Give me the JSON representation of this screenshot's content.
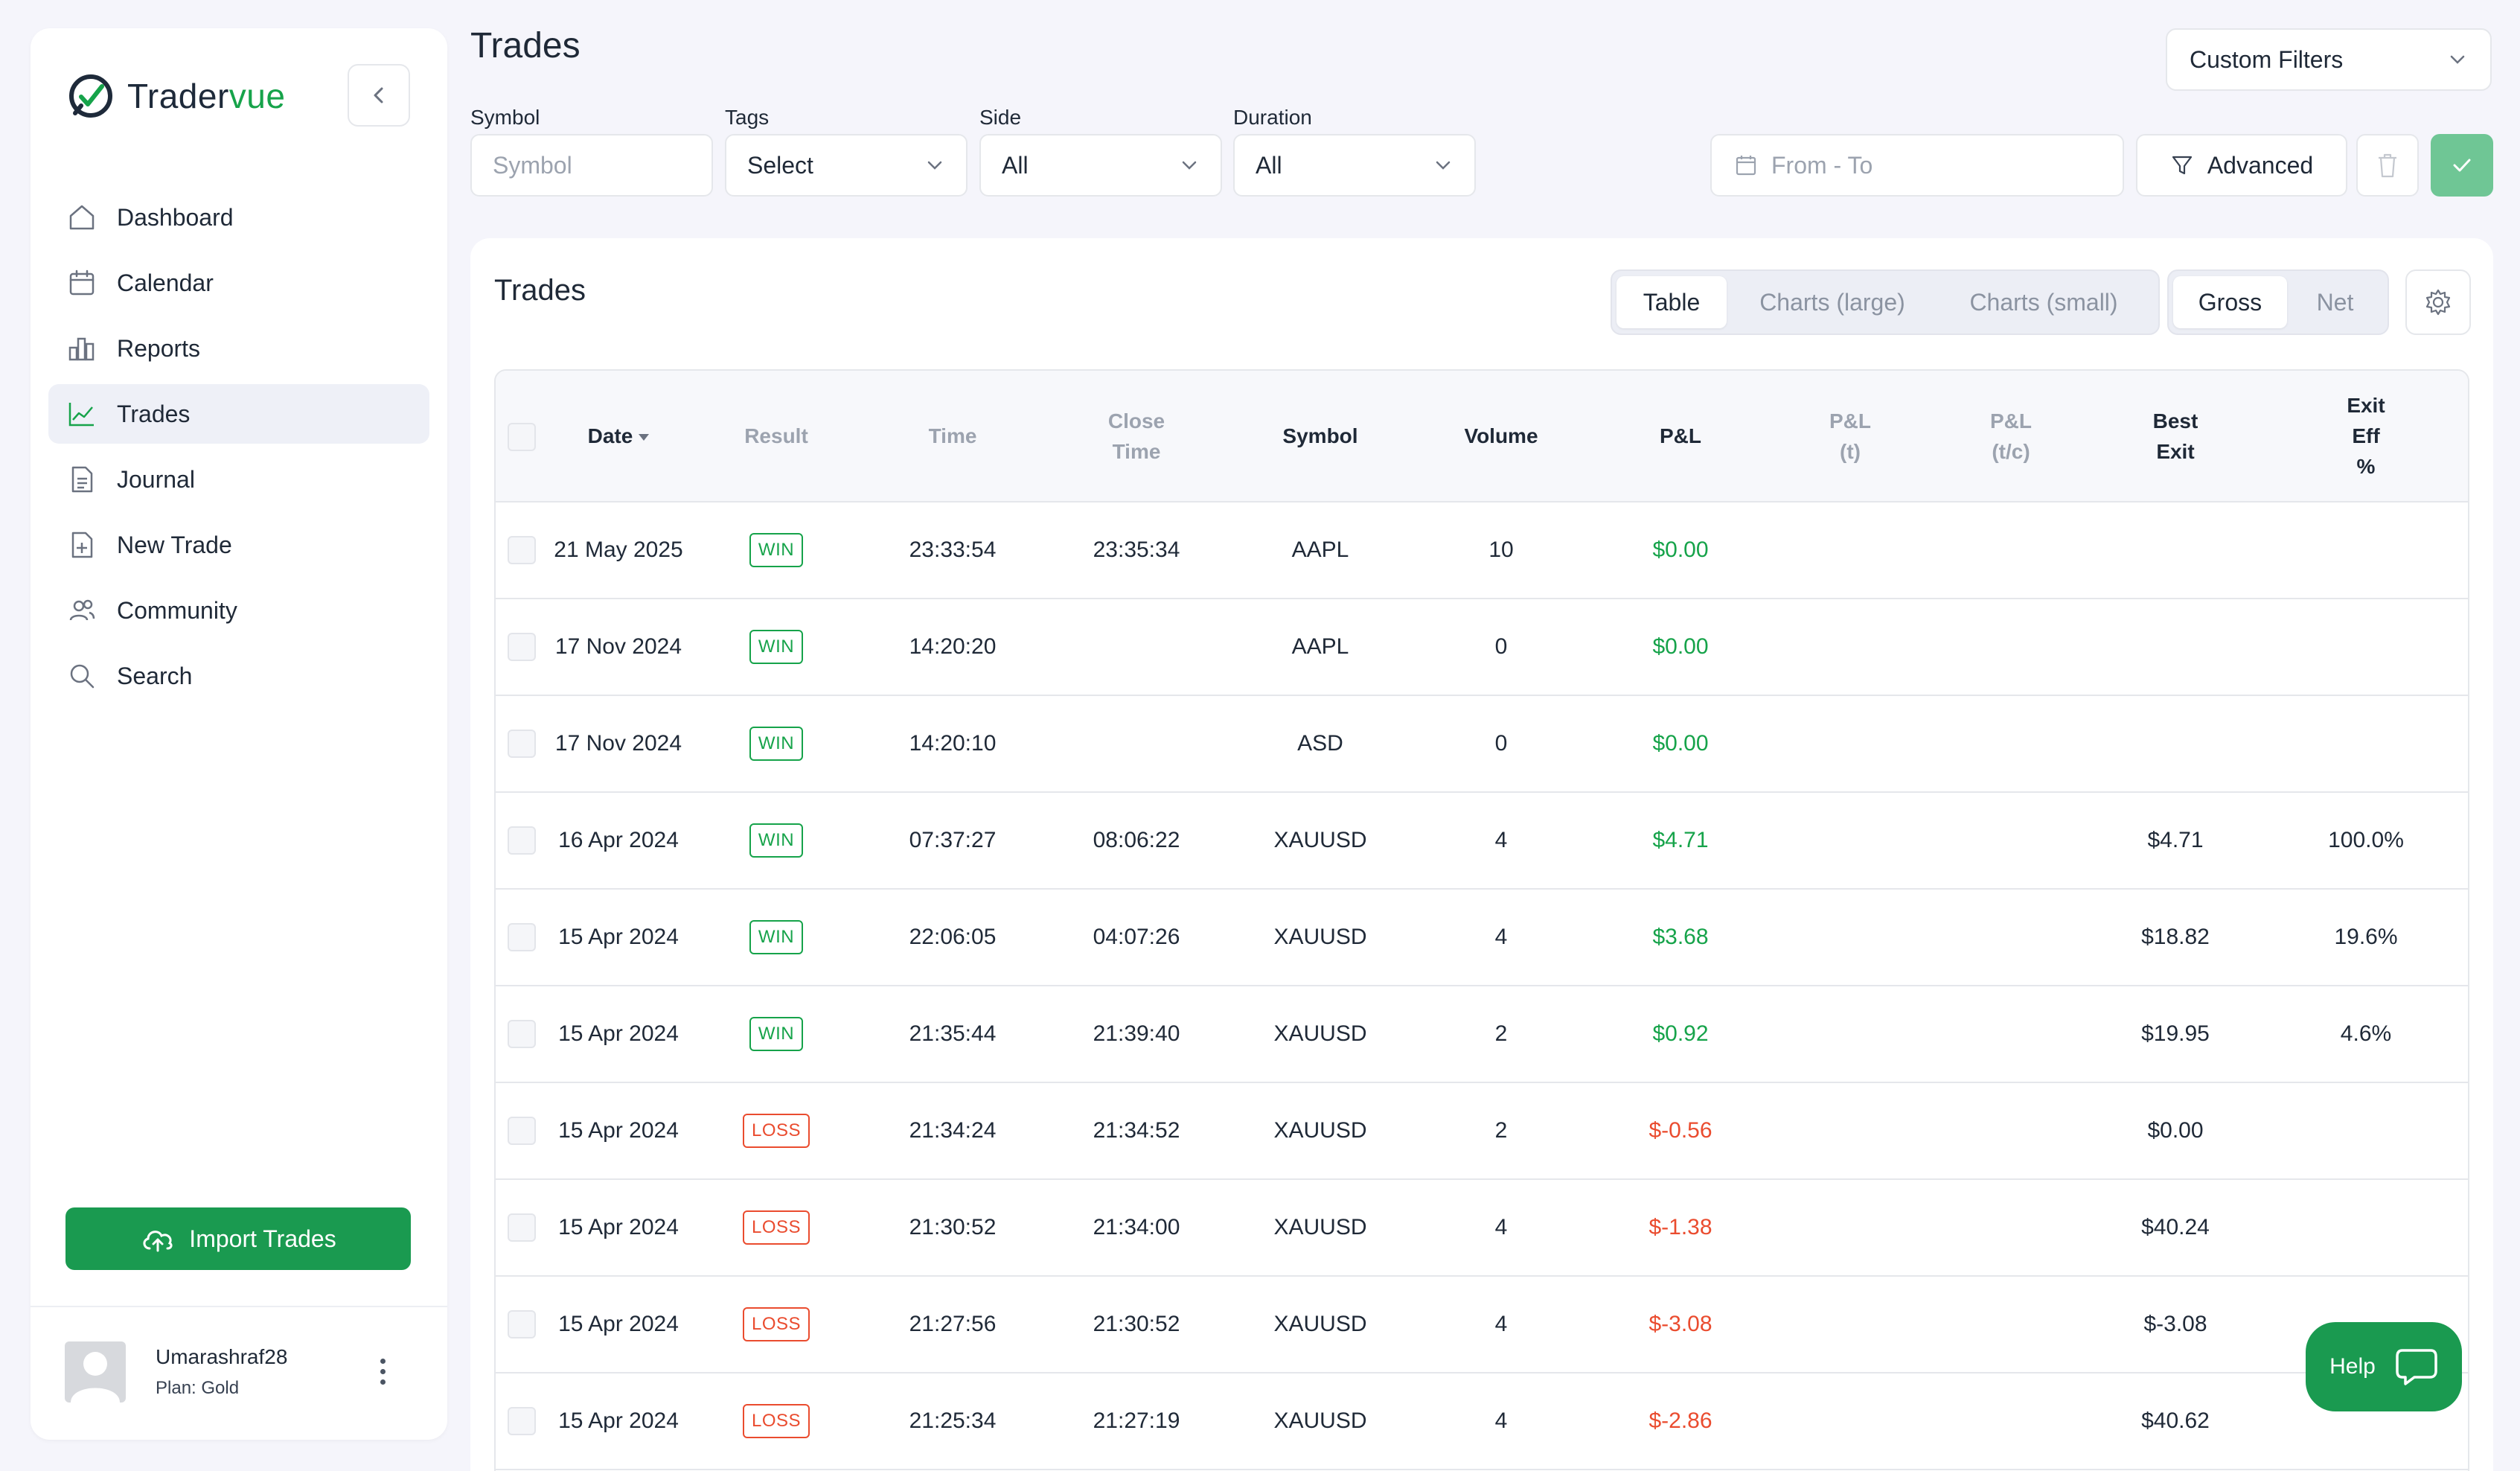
{
  "app": {
    "logo_prefix": "Trader",
    "logo_suffix": "vue"
  },
  "sidebar": {
    "items": [
      {
        "label": "Dashboard",
        "icon": "home-icon"
      },
      {
        "label": "Calendar",
        "icon": "calendar-icon"
      },
      {
        "label": "Reports",
        "icon": "bar-chart-icon"
      },
      {
        "label": "Trades",
        "icon": "trend-line-icon",
        "active": true
      },
      {
        "label": "Journal",
        "icon": "document-icon"
      },
      {
        "label": "New Trade",
        "icon": "document-plus-icon"
      },
      {
        "label": "Community",
        "icon": "users-icon"
      },
      {
        "label": "Search",
        "icon": "search-icon"
      }
    ],
    "import_label": "Import Trades",
    "user": {
      "name": "Umarashraf28",
      "plan": "Plan: Gold"
    }
  },
  "header": {
    "title": "Trades",
    "custom_filters": "Custom Filters"
  },
  "filters": {
    "symbol": {
      "label": "Symbol",
      "placeholder": "Symbol"
    },
    "tags": {
      "label": "Tags",
      "value": "Select"
    },
    "side": {
      "label": "Side",
      "value": "All"
    },
    "duration": {
      "label": "Duration",
      "value": "All"
    },
    "date_range_placeholder": "From - To",
    "advanced_label": "Advanced"
  },
  "card": {
    "title": "Trades",
    "view_tabs": [
      "Table",
      "Charts (large)",
      "Charts (small)"
    ],
    "active_view": "Table",
    "pnl_tabs": [
      "Gross",
      "Net"
    ],
    "active_pnl": "Gross"
  },
  "table": {
    "columns": {
      "date": "Date",
      "result": "Result",
      "time": "Time",
      "close_time_1": "Close",
      "close_time_2": "Time",
      "symbol": "Symbol",
      "volume": "Volume",
      "pnl": "P&L",
      "pnl_t_1": "P&L",
      "pnl_t_2": "(t)",
      "pnl_tc_1": "P&L",
      "pnl_tc_2": "(t/c)",
      "best_exit_1": "Best",
      "best_exit_2": "Exit",
      "exit_eff_1": "Exit",
      "exit_eff_2": "Eff",
      "exit_eff_3": "%"
    },
    "rows": [
      {
        "date": "21 May 2025",
        "result": "WIN",
        "time": "23:33:54",
        "close": "23:35:34",
        "symbol": "AAPL",
        "volume": "10",
        "pnl": "$0.00",
        "best_exit": "",
        "exit_eff": ""
      },
      {
        "date": "17 Nov 2024",
        "result": "WIN",
        "time": "14:20:20",
        "close": "",
        "symbol": "AAPL",
        "volume": "0",
        "pnl": "$0.00",
        "best_exit": "",
        "exit_eff": ""
      },
      {
        "date": "17 Nov 2024",
        "result": "WIN",
        "time": "14:20:10",
        "close": "",
        "symbol": "ASD",
        "volume": "0",
        "pnl": "$0.00",
        "best_exit": "",
        "exit_eff": ""
      },
      {
        "date": "16 Apr 2024",
        "result": "WIN",
        "time": "07:37:27",
        "close": "08:06:22",
        "symbol": "XAUUSD",
        "volume": "4",
        "pnl": "$4.71",
        "best_exit": "$4.71",
        "exit_eff": "100.0%"
      },
      {
        "date": "15 Apr 2024",
        "result": "WIN",
        "time": "22:06:05",
        "close": "04:07:26",
        "symbol": "XAUUSD",
        "volume": "4",
        "pnl": "$3.68",
        "best_exit": "$18.82",
        "exit_eff": "19.6%"
      },
      {
        "date": "15 Apr 2024",
        "result": "WIN",
        "time": "21:35:44",
        "close": "21:39:40",
        "symbol": "XAUUSD",
        "volume": "2",
        "pnl": "$0.92",
        "best_exit": "$19.95",
        "exit_eff": "4.6%"
      },
      {
        "date": "15 Apr 2024",
        "result": "LOSS",
        "time": "21:34:24",
        "close": "21:34:52",
        "symbol": "XAUUSD",
        "volume": "2",
        "pnl": "$-0.56",
        "best_exit": "$0.00",
        "exit_eff": ""
      },
      {
        "date": "15 Apr 2024",
        "result": "LOSS",
        "time": "21:30:52",
        "close": "21:34:00",
        "symbol": "XAUUSD",
        "volume": "4",
        "pnl": "$-1.38",
        "best_exit": "$40.24",
        "exit_eff": ""
      },
      {
        "date": "15 Apr 2024",
        "result": "LOSS",
        "time": "21:27:56",
        "close": "21:30:52",
        "symbol": "XAUUSD",
        "volume": "4",
        "pnl": "$-3.08",
        "best_exit": "$-3.08",
        "exit_eff": ""
      },
      {
        "date": "15 Apr 2024",
        "result": "LOSS",
        "time": "21:25:34",
        "close": "21:27:19",
        "symbol": "XAUUSD",
        "volume": "4",
        "pnl": "$-2.86",
        "best_exit": "$40.62",
        "exit_eff": ""
      }
    ]
  },
  "help": {
    "label": "Help"
  },
  "colors": {
    "brand_green": "#1a9a50",
    "win_green": "#16a34a",
    "loss_red": "#ea4c2f",
    "apply_green": "#6fc695"
  }
}
